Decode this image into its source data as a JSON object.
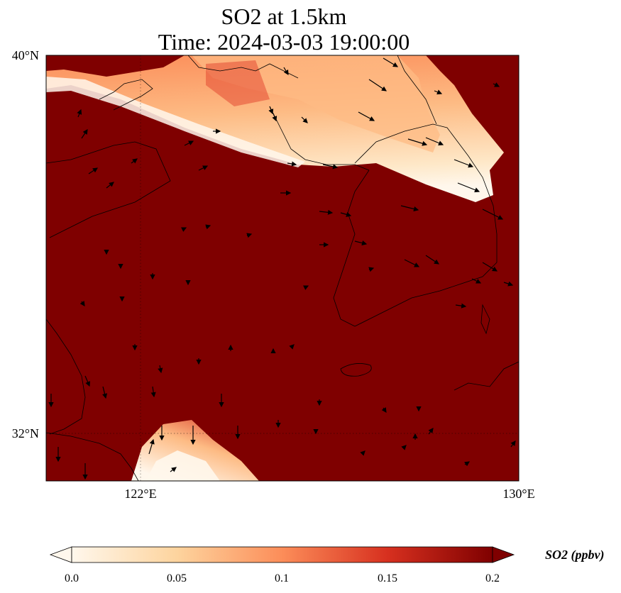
{
  "title_line1": "SO2 at 1.5km",
  "title_line2": "Time: 2024-03-03 19:00:00",
  "axes": {
    "lon_range": [
      119,
      130
    ],
    "lat_range": [
      31,
      40
    ],
    "lat_ticks": [
      {
        "value": 40,
        "label": "40°N"
      },
      {
        "value": 32,
        "label": "32°N"
      }
    ],
    "lon_ticks": [
      {
        "value": 122,
        "label": "122°E"
      },
      {
        "value": 130,
        "label": "130°E"
      }
    ],
    "gridlines": "dotted at labeled ticks"
  },
  "colorbar": {
    "title": "SO2 (ppbv)",
    "min": 0.0,
    "max": 0.2,
    "ticks": [
      "0.0",
      "0.05",
      "0.1",
      "0.15",
      "0.2"
    ],
    "colormap": "OrRd",
    "extend": "both",
    "colors": [
      "#fff7ec",
      "#fdd49e",
      "#fc8d59",
      "#d7301f",
      "#7f0000"
    ]
  },
  "background_color": "#7f0000"
}
